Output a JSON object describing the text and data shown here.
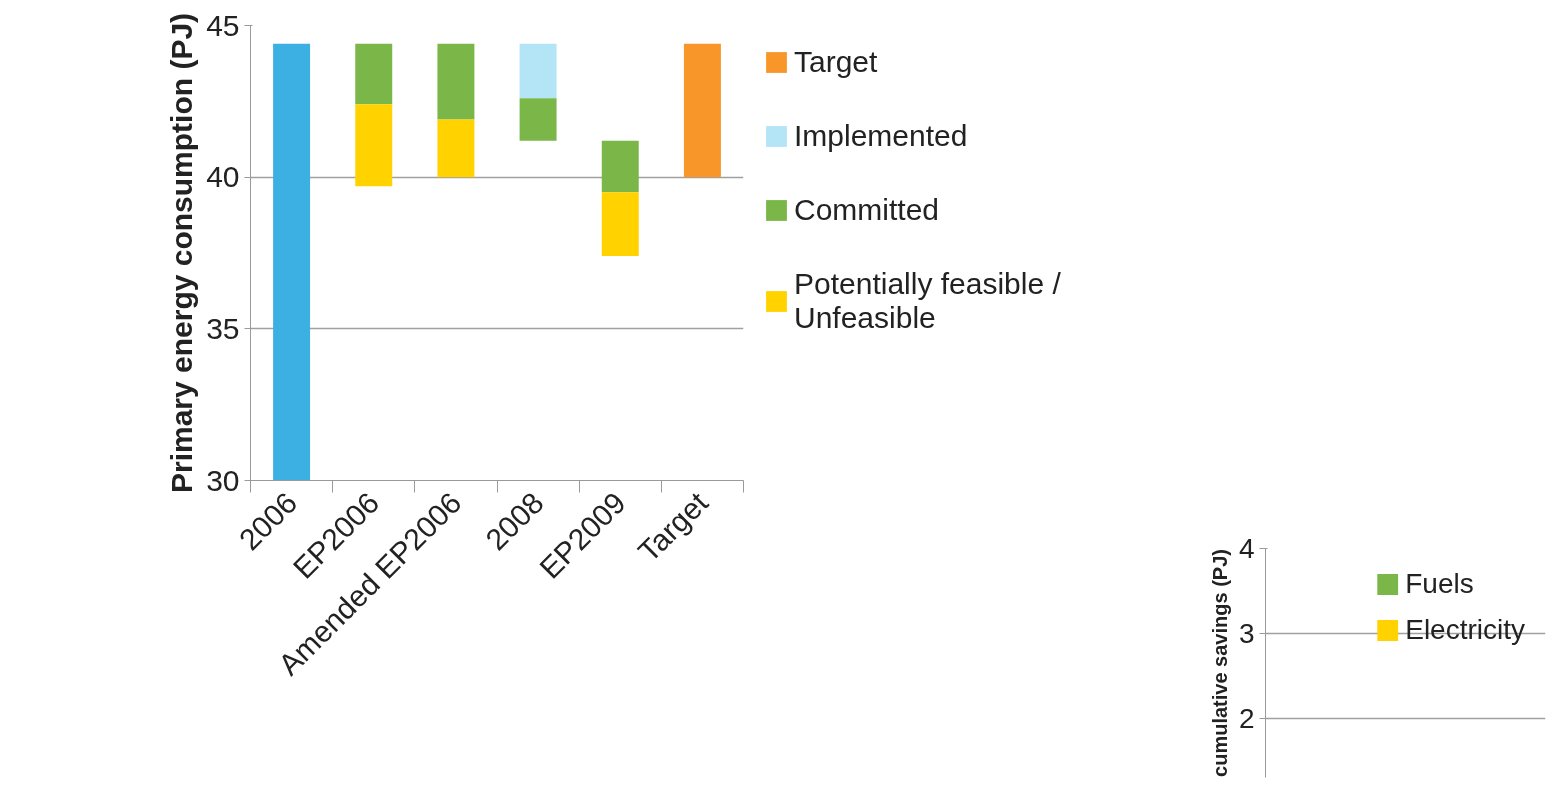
{
  "chart_data": [
    {
      "type": "bar",
      "ylabel": "Primary energy consumption (PJ)",
      "categories": [
        "2006",
        "EP2006",
        "Amended EP2006",
        "2008",
        "EP2009",
        "Target"
      ],
      "ylim": [
        30,
        45
      ],
      "yticks": [
        30,
        35,
        40,
        45
      ],
      "grid": "y",
      "legend": "right",
      "series": [
        {
          "color": "#3cb0e2",
          "values": [
            14.4,
            null,
            null,
            null,
            null,
            null
          ],
          "base": [
            30,
            null,
            null,
            null,
            null,
            null
          ]
        },
        {
          "name": "Target",
          "color": "#f9962a",
          "values": [
            null,
            null,
            null,
            null,
            null,
            4.4
          ],
          "base": [
            null,
            null,
            null,
            null,
            null,
            40.0
          ]
        },
        {
          "name": "Implemented",
          "color": "#b3e5f7",
          "values": [
            null,
            null,
            null,
            1.8,
            null,
            null
          ],
          "base": [
            null,
            null,
            null,
            42.6,
            null,
            null
          ]
        },
        {
          "name": "Committed",
          "color": "#7ab648",
          "values": [
            null,
            2.0,
            2.5,
            1.4,
            1.7,
            null
          ],
          "base": [
            null,
            42.4,
            41.9,
            41.2,
            39.5,
            null
          ]
        },
        {
          "name": "Potentially feasible / Unfeasible",
          "color": "#ffd200",
          "values": [
            null,
            2.7,
            1.9,
            null,
            2.1,
            null
          ],
          "base": [
            null,
            39.7,
            40.0,
            null,
            37.4,
            null
          ]
        }
      ]
    },
    {
      "type": "bar",
      "ylabel": "cumulative savings (PJ)",
      "ylim": [
        1.3,
        4
      ],
      "yticks": [
        2,
        3,
        4
      ],
      "grid": "y",
      "legend": "top right",
      "series": [
        {
          "name": "Fuels",
          "color": "#7ab648"
        },
        {
          "name": "Electricity",
          "color": "#ffd200"
        }
      ]
    }
  ]
}
